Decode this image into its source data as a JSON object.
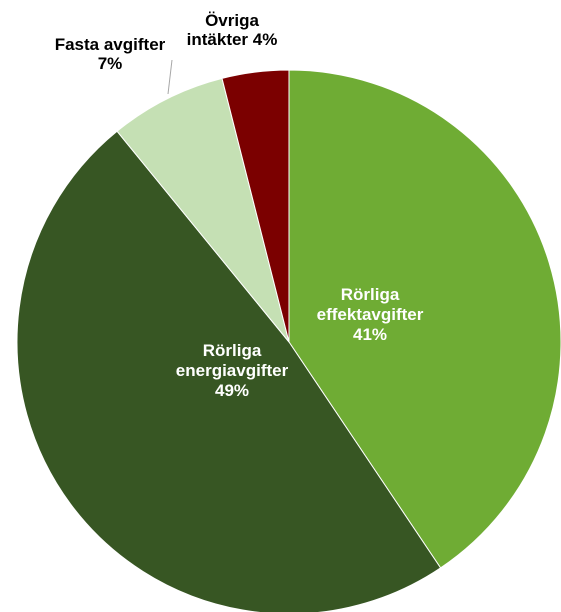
{
  "chart_data": {
    "type": "pie",
    "title": "",
    "slices": [
      {
        "label_lines": [
          "Rörliga",
          "effektavgifter",
          "41%"
        ],
        "value": 41,
        "color": "#6FAC34",
        "label_color": "#ffffff"
      },
      {
        "label_lines": [
          "Rörliga",
          "energiavgifter",
          "49%"
        ],
        "value": 49,
        "color": "#375623",
        "label_color": "#ffffff"
      },
      {
        "label_lines": [
          "Fasta avgifter",
          "7%"
        ],
        "value": 7,
        "color": "#C5E0B4",
        "label_color": "#000000"
      },
      {
        "label_lines": [
          "Övriga",
          "intäkter 4%"
        ],
        "value": 4,
        "color": "#7B0000",
        "label_color": "#000000"
      }
    ]
  }
}
